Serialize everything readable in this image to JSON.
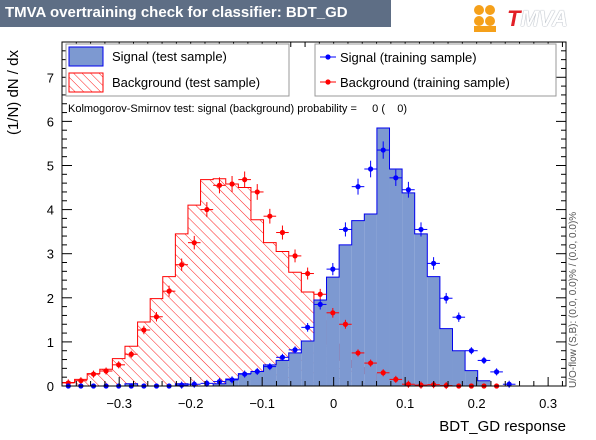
{
  "title": "TMVA overtraining check for classifier: BDT_GD",
  "logo": {
    "text_t": "T",
    "text_mva": "MVA"
  },
  "colors": {
    "signal_fill": "#7d99d1",
    "signal_line": "#0000ee",
    "background_hatch": "#ff0000",
    "background_points": "#ff0000",
    "signal_points": "#0000ff",
    "title_bar": "#5e6e85"
  },
  "legend": {
    "signal_test": "Signal (test sample)",
    "background_test": "Background (test sample)",
    "signal_train": "Signal (training sample)",
    "background_train": "Background (training sample)"
  },
  "ks_text": "Kolmogorov-Smirnov test: signal (background) probability =     0 (    0)",
  "side_text": "U/O-flow (S,B): (0.0, 0.0)% / (0.0, 0.0)%",
  "chart_data": {
    "type": "bar",
    "xlabel": "BDT_GD response",
    "ylabel": "(1/N) dN / dx",
    "xlim": [
      -0.38,
      0.325
    ],
    "ylim": [
      0,
      7.8
    ],
    "x_ticks": [
      -0.3,
      -0.2,
      -0.1,
      0,
      0.1,
      0.2,
      0.3
    ],
    "x_tick_labels": [
      "−0.3",
      "−0.2",
      "−0.1",
      "0",
      "0.1",
      "0.2",
      "0.3"
    ],
    "y_ticks": [
      0,
      1,
      2,
      3,
      4,
      5,
      6,
      7
    ],
    "y_tick_labels": [
      "0",
      "1",
      "2",
      "3",
      "4",
      "5",
      "6",
      "7"
    ],
    "bin_edges_start": -0.38,
    "bin_width": 0.01762,
    "series": [
      {
        "name": "Signal (test sample)",
        "kind": "filled-hist",
        "values": [
          0,
          0,
          0,
          0,
          0,
          0.05,
          0,
          0,
          0,
          0.05,
          0,
          0,
          0.05,
          0.16,
          0.28,
          0.33,
          0.48,
          0.58,
          0.75,
          1.02,
          1.95,
          2.47,
          3.2,
          3.75,
          3.9,
          5.85,
          4.92,
          4.38,
          3.45,
          2.48,
          1.3,
          0.8,
          0.35,
          0.12
        ]
      },
      {
        "name": "Background (test sample)",
        "kind": "hatched-hist",
        "values": [
          0.08,
          0.15,
          0.28,
          0.38,
          0.62,
          0.9,
          1.45,
          1.98,
          2.48,
          3.45,
          4.1,
          4.68,
          4.7,
          4.58,
          4.5,
          3.77,
          3.25,
          3.05,
          2.58,
          2.13,
          1.48,
          0.95,
          0.58,
          0.42,
          0.28,
          0.12,
          0.06,
          0.04,
          0.02,
          0,
          0,
          0,
          0,
          0
        ]
      },
      {
        "name": "Signal (training sample)",
        "kind": "points",
        "values": [
          0,
          0,
          0,
          0,
          0,
          0,
          0,
          0,
          0,
          0.02,
          0.04,
          0.06,
          0.1,
          0.14,
          0.27,
          0.33,
          0.44,
          0.65,
          0.82,
          1.33,
          1.85,
          2.65,
          3.55,
          4.52,
          4.92,
          5.35,
          4.72,
          4.45,
          3.55,
          2.78,
          1.99,
          1.56,
          0.8,
          0.58,
          0.32,
          0.04
        ]
      },
      {
        "name": "Background (training sample)",
        "kind": "points",
        "values": [
          0.07,
          0.12,
          0.27,
          0.34,
          0.48,
          0.72,
          1.27,
          1.57,
          2.15,
          2.75,
          3.25,
          4.0,
          4.55,
          4.58,
          4.68,
          4.4,
          3.85,
          3.48,
          2.95,
          2.55,
          2.08,
          1.66,
          1.4,
          0.75,
          0.52,
          0.3,
          0.15,
          0.04,
          0.02,
          0.03,
          0.01,
          0,
          0,
          0,
          0
        ]
      }
    ]
  }
}
